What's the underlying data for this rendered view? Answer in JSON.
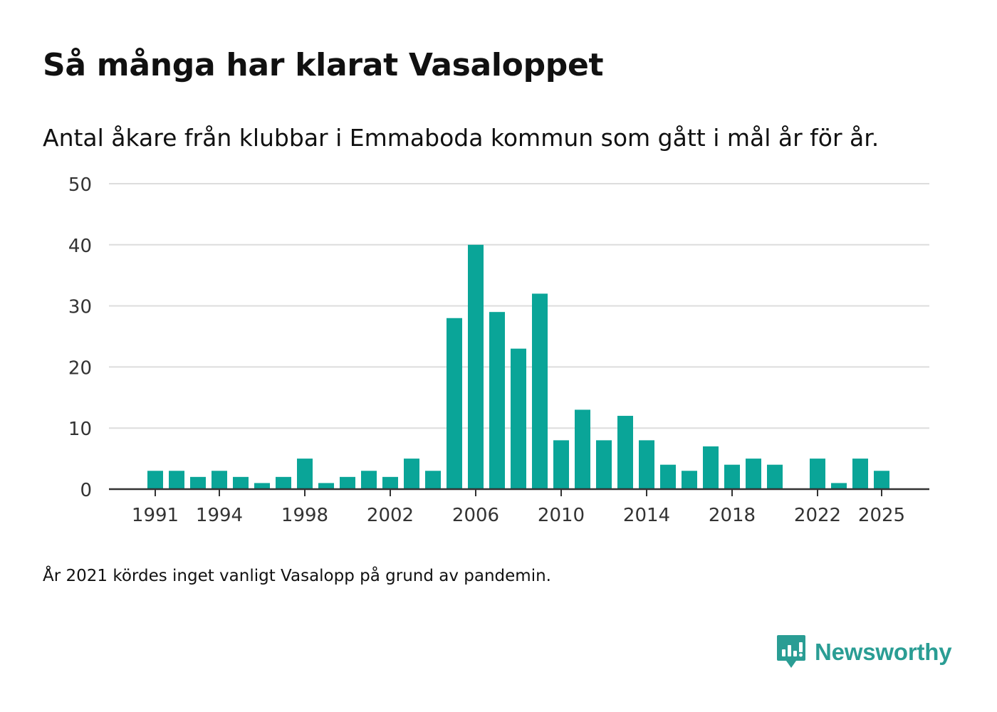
{
  "title": "Så många har klarat Vasaloppet",
  "subtitle": "Antal åkare från klubbar i Emmaboda kommun som gått i mål år för år.",
  "footnote": "År 2021 kördes inget vanligt Vasalopp på grund av pandemin.",
  "brand": {
    "name": "Newsworthy",
    "icon": "newsworthy-logo-icon",
    "color": "#2a9d94"
  },
  "colors": {
    "bar": "#0aa598",
    "grid": "#dddddd",
    "axis": "#333333",
    "tick_text": "#333333"
  },
  "chart_data": {
    "type": "bar",
    "title": "Så många har klarat Vasaloppet",
    "xlabel": "",
    "ylabel": "",
    "ylim": [
      0,
      50
    ],
    "yticks": [
      0,
      10,
      20,
      30,
      40,
      50
    ],
    "xticks": [
      1991,
      1994,
      1998,
      2002,
      2006,
      2010,
      2014,
      2018,
      2022,
      2025
    ],
    "x_range": [
      1989,
      2027
    ],
    "grid": true,
    "legend": "none",
    "categories": [
      1991,
      1992,
      1993,
      1994,
      1995,
      1996,
      1997,
      1998,
      1999,
      2000,
      2001,
      2002,
      2003,
      2004,
      2005,
      2006,
      2007,
      2008,
      2009,
      2010,
      2011,
      2012,
      2013,
      2014,
      2015,
      2016,
      2017,
      2018,
      2019,
      2020,
      2021,
      2022,
      2023,
      2024,
      2025
    ],
    "values": [
      3,
      3,
      2,
      3,
      2,
      1,
      2,
      5,
      1,
      2,
      3,
      2,
      5,
      3,
      28,
      40,
      29,
      23,
      32,
      8,
      13,
      8,
      12,
      8,
      4,
      3,
      7,
      4,
      5,
      4,
      null,
      5,
      1,
      5,
      3
    ]
  }
}
